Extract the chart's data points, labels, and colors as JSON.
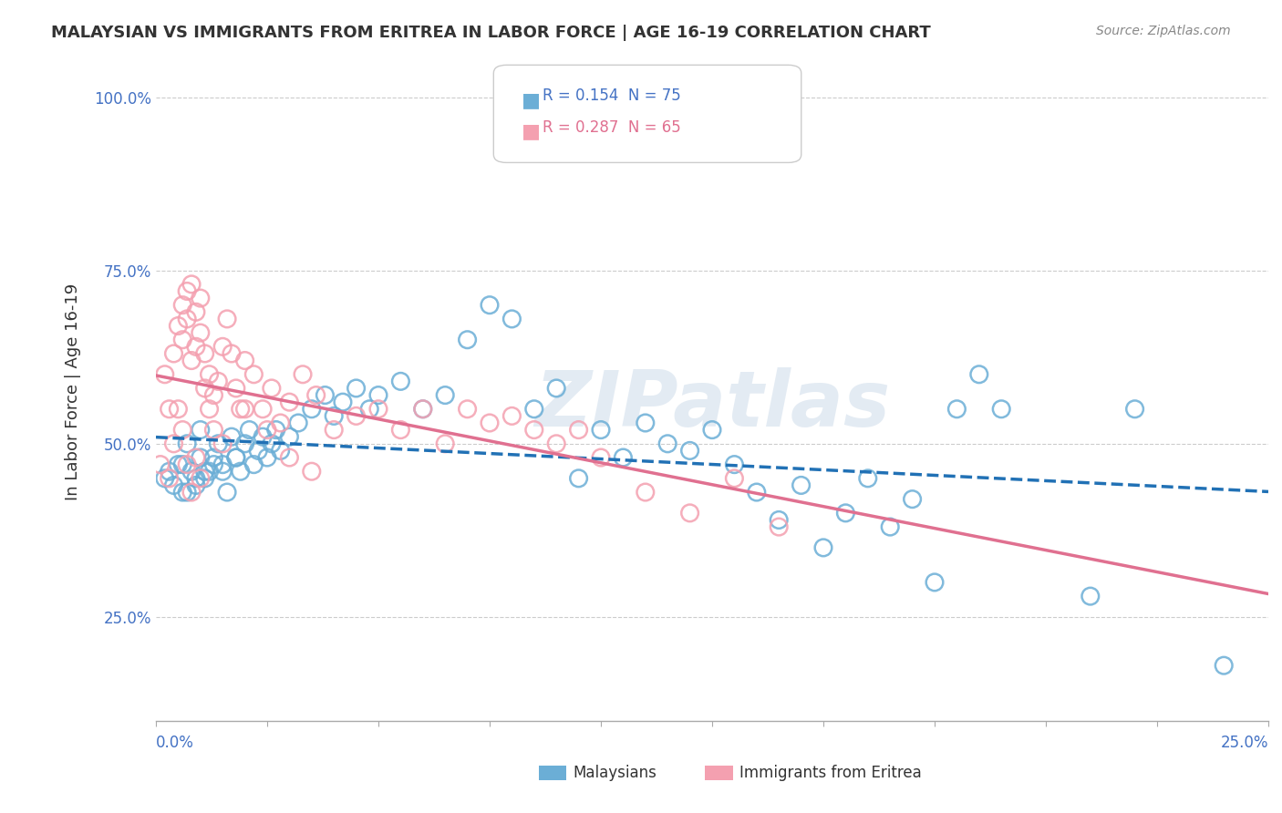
{
  "title": "MALAYSIAN VS IMMIGRANTS FROM ERITREA IN LABOR FORCE | AGE 16-19 CORRELATION CHART",
  "source": "Source: ZipAtlas.com",
  "ylabel": "In Labor Force | Age 16-19",
  "ytick_labels": [
    "25.0%",
    "50.0%",
    "75.0%",
    "100.0%"
  ],
  "ytick_vals": [
    0.25,
    0.5,
    0.75,
    1.0
  ],
  "malaysian_color": "#6baed6",
  "eritrea_color": "#f4a0b0",
  "malaysian_line_color": "#2171b5",
  "eritrea_line_color": "#e07090",
  "background_color": "#ffffff",
  "watermark": "ZIPatlas",
  "watermark_color": "#c8d8e8",
  "R_malaysian": 0.154,
  "N_malaysian": 75,
  "R_eritrea": 0.287,
  "N_eritrea": 65,
  "xmin": 0.0,
  "xmax": 0.25,
  "ymin": 0.1,
  "ymax": 1.05,
  "malaysian_x": [
    0.005,
    0.006,
    0.007,
    0.008,
    0.009,
    0.01,
    0.01,
    0.011,
    0.012,
    0.013,
    0.014,
    0.015,
    0.016,
    0.017,
    0.018,
    0.019,
    0.02,
    0.021,
    0.022,
    0.023,
    0.024,
    0.025,
    0.026,
    0.027,
    0.028,
    0.03,
    0.032,
    0.035,
    0.038,
    0.04,
    0.042,
    0.045,
    0.048,
    0.05,
    0.055,
    0.06,
    0.065,
    0.07,
    0.075,
    0.08,
    0.085,
    0.09,
    0.095,
    0.1,
    0.105,
    0.11,
    0.115,
    0.12,
    0.125,
    0.13,
    0.135,
    0.14,
    0.145,
    0.15,
    0.155,
    0.16,
    0.165,
    0.17,
    0.175,
    0.18,
    0.002,
    0.003,
    0.004,
    0.006,
    0.007,
    0.009,
    0.011,
    0.013,
    0.015,
    0.018,
    0.185,
    0.19,
    0.21,
    0.22,
    0.24
  ],
  "malaysian_y": [
    0.47,
    0.43,
    0.5,
    0.46,
    0.44,
    0.48,
    0.52,
    0.45,
    0.46,
    0.48,
    0.5,
    0.47,
    0.43,
    0.51,
    0.48,
    0.46,
    0.5,
    0.52,
    0.47,
    0.49,
    0.51,
    0.48,
    0.5,
    0.52,
    0.49,
    0.51,
    0.53,
    0.55,
    0.57,
    0.54,
    0.56,
    0.58,
    0.55,
    0.57,
    0.59,
    0.55,
    0.57,
    0.65,
    0.7,
    0.68,
    0.55,
    0.58,
    0.45,
    0.52,
    0.48,
    0.53,
    0.5,
    0.49,
    0.52,
    0.47,
    0.43,
    0.39,
    0.44,
    0.35,
    0.4,
    0.45,
    0.38,
    0.42,
    0.3,
    0.55,
    0.45,
    0.46,
    0.44,
    0.47,
    0.43,
    0.45,
    0.46,
    0.47,
    0.46,
    0.48,
    0.6,
    0.55,
    0.28,
    0.55,
    0.18
  ],
  "eritrea_x": [
    0.001,
    0.002,
    0.003,
    0.004,
    0.005,
    0.006,
    0.006,
    0.007,
    0.007,
    0.008,
    0.008,
    0.009,
    0.009,
    0.01,
    0.01,
    0.011,
    0.011,
    0.012,
    0.012,
    0.013,
    0.013,
    0.014,
    0.015,
    0.016,
    0.017,
    0.018,
    0.019,
    0.02,
    0.022,
    0.024,
    0.026,
    0.028,
    0.03,
    0.033,
    0.036,
    0.04,
    0.045,
    0.05,
    0.055,
    0.06,
    0.065,
    0.07,
    0.075,
    0.08,
    0.085,
    0.09,
    0.095,
    0.1,
    0.11,
    0.12,
    0.13,
    0.14,
    0.003,
    0.004,
    0.005,
    0.006,
    0.007,
    0.008,
    0.009,
    0.01,
    0.015,
    0.02,
    0.025,
    0.03,
    0.035
  ],
  "eritrea_y": [
    0.47,
    0.6,
    0.55,
    0.63,
    0.67,
    0.7,
    0.65,
    0.72,
    0.68,
    0.73,
    0.62,
    0.69,
    0.64,
    0.71,
    0.66,
    0.63,
    0.58,
    0.55,
    0.6,
    0.57,
    0.52,
    0.59,
    0.64,
    0.68,
    0.63,
    0.58,
    0.55,
    0.62,
    0.6,
    0.55,
    0.58,
    0.53,
    0.56,
    0.6,
    0.57,
    0.52,
    0.54,
    0.55,
    0.52,
    0.55,
    0.5,
    0.55,
    0.53,
    0.54,
    0.52,
    0.5,
    0.52,
    0.48,
    0.43,
    0.4,
    0.45,
    0.38,
    0.45,
    0.5,
    0.55,
    0.52,
    0.47,
    0.43,
    0.48,
    0.45,
    0.5,
    0.55,
    0.52,
    0.48,
    0.46
  ]
}
